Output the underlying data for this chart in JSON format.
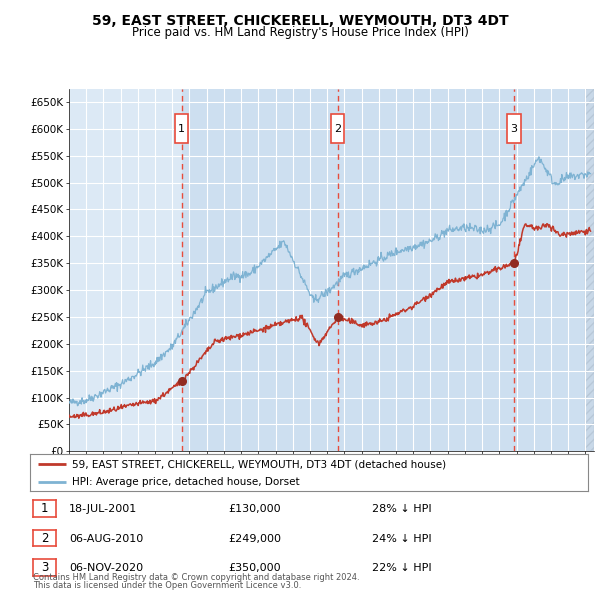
{
  "title": "59, EAST STREET, CHICKERELL, WEYMOUTH, DT3 4DT",
  "subtitle": "Price paid vs. HM Land Registry's House Price Index (HPI)",
  "legend_line1": "59, EAST STREET, CHICKERELL, WEYMOUTH, DT3 4DT (detached house)",
  "legend_line2": "HPI: Average price, detached house, Dorset",
  "footer1": "Contains HM Land Registry data © Crown copyright and database right 2024.",
  "footer2": "This data is licensed under the Open Government Licence v3.0.",
  "transactions": [
    {
      "num": 1,
      "date": "18-JUL-2001",
      "price": "£130,000",
      "pct": "28%",
      "year": 2001.54
    },
    {
      "num": 2,
      "date": "06-AUG-2010",
      "price": "£249,000",
      "pct": "24%",
      "year": 2010.6
    },
    {
      "num": 3,
      "date": "06-NOV-2020",
      "price": "£350,000",
      "pct": "22%",
      "year": 2020.85
    }
  ],
  "bg_color": "#dce9f5",
  "grid_color": "#ffffff",
  "red_line_color": "#c0392b",
  "blue_line_color": "#7fb3d3",
  "vline_color": "#e74c3c",
  "marker_color": "#922b21",
  "shade_color": "#cddff0",
  "hatch_color": "#cddff0",
  "ylim": [
    0,
    675000
  ],
  "yticks": [
    0,
    50000,
    100000,
    150000,
    200000,
    250000,
    300000,
    350000,
    400000,
    450000,
    500000,
    550000,
    600000,
    650000
  ],
  "xlim_start": 1995.0,
  "xlim_end": 2025.5
}
